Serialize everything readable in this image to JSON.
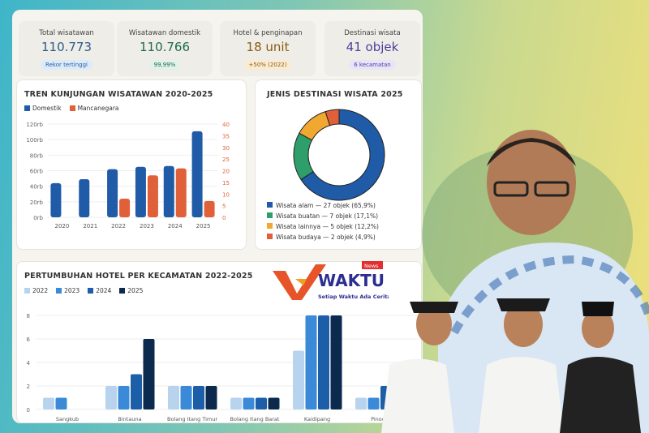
{
  "kpis": [
    {
      "label": "Total wisatawan",
      "value": "110.773",
      "badge": "Rekor tertinggi",
      "color": "#2d5a8a",
      "badge_bg": "#dcebfa",
      "badge_color": "#2a5da0"
    },
    {
      "label": "Wisatawan domestik",
      "value": "110.766",
      "badge": "99,99%",
      "color": "#1e6a4e",
      "badge_bg": "#e0f2ea",
      "badge_color": "#1e6a4e"
    },
    {
      "label": "Hotel & penginapan",
      "value": "18 unit",
      "badge": "+50% (2022)",
      "color": "#8a5a10",
      "badge_bg": "#fbebd2",
      "badge_color": "#8a5a10"
    },
    {
      "label": "Destinasi wisata",
      "value": "41 objek",
      "badge": "6 kecamatan",
      "color": "#4b3fa0",
      "badge_bg": "#e8e5f8",
      "badge_color": "#4b3fa0"
    }
  ],
  "logo": {
    "text": "WAKTU",
    "badge": "News",
    "tagline": "Setiap Waktu Ada Cerita"
  },
  "chart_data": [
    {
      "type": "bar",
      "title": "TREN KUNJUNGAN WISATAWAN 2020-2025",
      "categories": [
        "2020",
        "2021",
        "2022",
        "2023",
        "2024",
        "2025"
      ],
      "series": [
        {
          "name": "Domestik",
          "axis": "left",
          "color": "#1f5ba6",
          "values": [
            44,
            49,
            62,
            65,
            66,
            110.8
          ]
        },
        {
          "name": "Mancanegara",
          "axis": "right",
          "color": "#e0603a",
          "values": [
            0,
            0,
            8,
            18,
            21,
            7
          ]
        }
      ],
      "y_left": {
        "ticks": [
          "0rb",
          "20rb",
          "40rb",
          "60rb",
          "80rb",
          "100rb",
          "120rb"
        ],
        "range": [
          0,
          120
        ]
      },
      "y_right": {
        "ticks": [
          "0",
          "5",
          "10",
          "15",
          "20",
          "25",
          "30",
          "35",
          "40"
        ],
        "range": [
          0,
          40
        ]
      },
      "grid": true,
      "legend": "top-left"
    },
    {
      "type": "pie",
      "title": "JENIS DESTINASI WISATA 2025",
      "slices": [
        {
          "label": "Wisata alam — 27 objek (65,9%)",
          "value": 27,
          "color": "#1f5ba6"
        },
        {
          "label": "Wisata buatan — 7 objek (17,1%)",
          "value": 7,
          "color": "#2e9e6a"
        },
        {
          "label": "Wisata lainnya — 5 objek (12,2%)",
          "value": 5,
          "color": "#f0a830"
        },
        {
          "label": "Wisata budaya — 2 objek (4,9%)",
          "value": 2,
          "color": "#e0603a"
        }
      ],
      "legend": "bottom"
    },
    {
      "type": "bar",
      "title": "PERTUMBUHAN HOTEL PER KECAMATAN 2022-2025",
      "categories": [
        "Sangkub",
        "Bintauna",
        "Bolang Itang Timur",
        "Bolang Itang Barat",
        "Kaidipang",
        "Pinoga"
      ],
      "series": [
        {
          "name": "2022",
          "color": "#b8d3ee",
          "values": [
            1,
            2,
            2,
            1,
            5,
            1
          ]
        },
        {
          "name": "2023",
          "color": "#3a8ad8",
          "values": [
            1,
            2,
            2,
            1,
            8,
            1
          ]
        },
        {
          "name": "2024",
          "color": "#1d5ea8",
          "values": [
            0,
            3,
            2,
            1,
            8,
            2
          ]
        },
        {
          "name": "2025",
          "color": "#0c2a4e",
          "values": [
            0,
            6,
            2,
            1,
            8,
            null
          ]
        }
      ],
      "y": {
        "ticks": [
          "0",
          "2",
          "4",
          "6",
          "8"
        ],
        "range": [
          0,
          8
        ]
      },
      "grid": true,
      "legend": "top-left"
    }
  ]
}
